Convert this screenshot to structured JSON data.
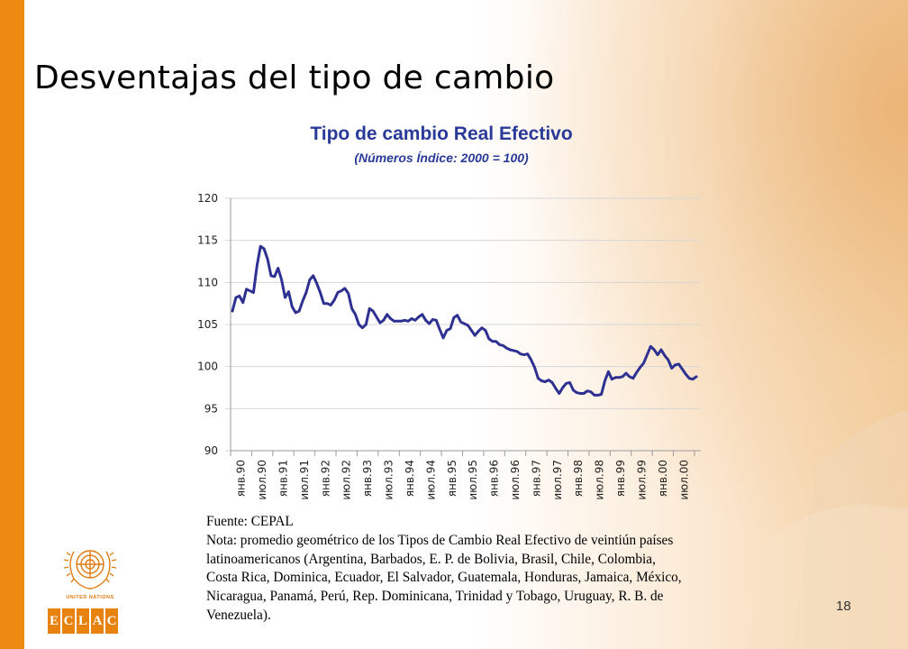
{
  "slide": {
    "title": "Desventajas del tipo de cambio",
    "page_number": "18",
    "source": "Fuente: CEPAL",
    "note_lines": [
      "Nota: promedio geométrico de los Tipos de Cambio Real Efectivo de veintiún países",
      "latinoamericanos (Argentina, Barbados, E. P. de Bolivia, Brasil, Chile, Colombia,",
      "Costa Rica, Dominica, Ecuador, El Salvador, Guatemala, Honduras, Jamaica, México,",
      "Nicaragua, Panamá, Perú, Rep. Dominicana, Trinidad y Tobago, Uruguay, R. B. de",
      "Venezuela)."
    ],
    "logo": {
      "emblem_label": "UNITED NATIONS",
      "letters": [
        "E",
        "C",
        "L",
        "A",
        "C"
      ]
    }
  },
  "colors": {
    "accent_bar": "#ee8a12",
    "title_blue": "#2a3a98",
    "series_line": "#2e3192",
    "logo_orange": "#e8820f"
  },
  "chart_data": {
    "type": "line",
    "title": "Tipo de cambio Real Efectivo",
    "subtitle": "(Números Índice: 2000 = 100)",
    "ylim": [
      90,
      120
    ],
    "yticks": [
      90,
      95,
      100,
      105,
      110,
      115,
      120
    ],
    "grid": true,
    "x_tick_labels": [
      "янв.90",
      "июл.90",
      "янв.91",
      "июл.91",
      "янв.92",
      "июл.92",
      "янв.93",
      "июл.93",
      "янв.94",
      "июл.94",
      "янв.95",
      "июл.95",
      "янв.96",
      "июл.96",
      "янв.97",
      "июл.97",
      "янв.98",
      "июл.98",
      "янв.99",
      "июл.99",
      "янв.00",
      "июл.00"
    ],
    "x_start": "1990-01",
    "frequency": "monthly",
    "series": [
      {
        "name": "",
        "values": [
          106.6,
          108.2,
          108.4,
          107.6,
          109.2,
          109.0,
          108.8,
          112.0,
          114.3,
          114.0,
          112.8,
          110.8,
          110.7,
          111.7,
          110.3,
          108.2,
          108.9,
          107.1,
          106.4,
          106.6,
          107.8,
          108.8,
          110.3,
          110.8,
          109.9,
          108.8,
          107.5,
          107.5,
          107.3,
          107.9,
          108.8,
          109.0,
          109.3,
          108.7,
          106.9,
          106.2,
          105.0,
          104.6,
          105.0,
          106.9,
          106.6,
          105.9,
          105.2,
          105.5,
          106.2,
          105.7,
          105.4,
          105.4,
          105.4,
          105.5,
          105.4,
          105.7,
          105.5,
          105.9,
          106.2,
          105.5,
          105.1,
          105.6,
          105.5,
          104.4,
          103.4,
          104.3,
          104.5,
          105.8,
          106.1,
          105.3,
          105.1,
          104.9,
          104.3,
          103.7,
          104.2,
          104.6,
          104.3,
          103.3,
          103.0,
          103.0,
          102.6,
          102.5,
          102.2,
          102.0,
          101.9,
          101.8,
          101.5,
          101.4,
          101.5,
          100.8,
          99.9,
          98.6,
          98.3,
          98.2,
          98.4,
          98.1,
          97.4,
          96.8,
          97.5,
          98.0,
          98.1,
          97.2,
          96.9,
          96.8,
          96.8,
          97.1,
          97.0,
          96.6,
          96.6,
          96.7,
          98.3,
          99.4,
          98.5,
          98.7,
          98.7,
          98.8,
          99.2,
          98.8,
          98.6,
          99.3,
          99.9,
          100.4,
          101.4,
          102.4,
          102.0,
          101.4,
          102.0,
          101.3,
          100.8,
          99.8,
          100.2,
          100.3,
          99.7,
          99.1,
          98.6,
          98.5,
          98.8
        ]
      }
    ]
  }
}
